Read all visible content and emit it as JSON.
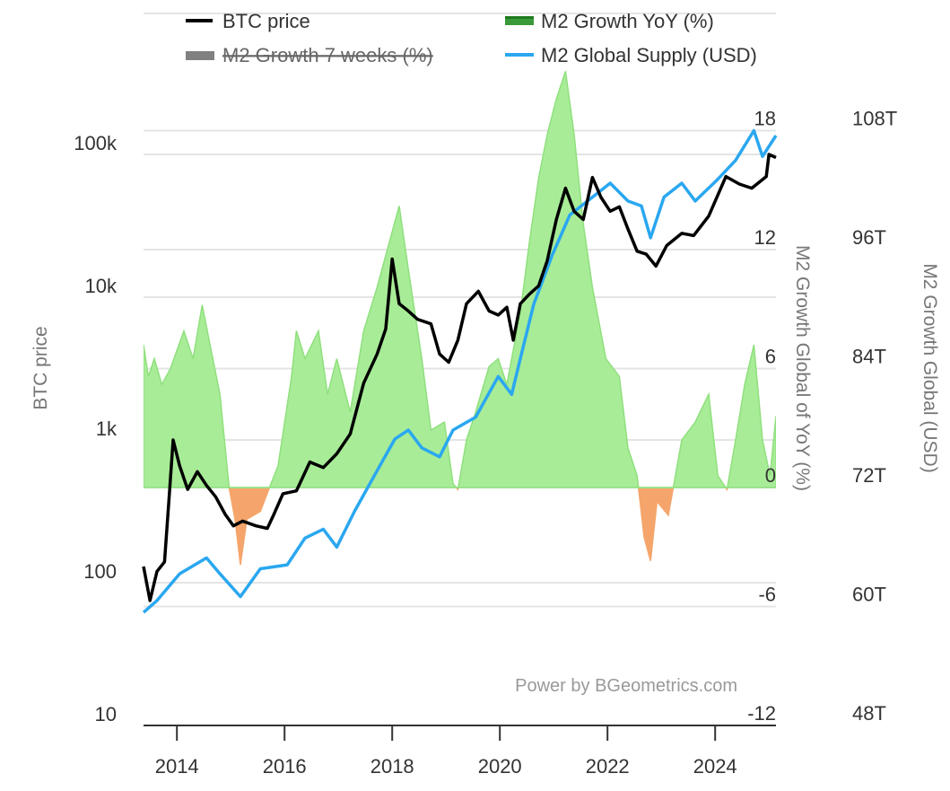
{
  "chart_data": {
    "type": "line",
    "title": "",
    "legend": {
      "placement": "top",
      "items": [
        {
          "label": "BTC price",
          "color": "#000000",
          "enabled": true
        },
        {
          "label": "M2 Growth YoY (%)",
          "color": "#3a9a3a",
          "enabled": true
        },
        {
          "label": "M2 Growth 7 weeks (%)",
          "color": "#808080",
          "enabled": false
        },
        {
          "label": "M2 Global Supply (USD)",
          "color": "#2aa7f0",
          "enabled": true
        }
      ]
    },
    "x_axis": {
      "ticks": [
        "2014",
        "2016",
        "2018",
        "2020",
        "2022",
        "2024"
      ],
      "tick_values": [
        2014,
        2016,
        2018,
        2020,
        2022,
        2024
      ],
      "range": [
        2013.38,
        2025.13
      ]
    },
    "y_left": {
      "label": "BTC price",
      "scale": "log",
      "range": [
        10,
        1000000
      ],
      "ticks": [
        "10",
        "100",
        "1k",
        "10k",
        "100k"
      ],
      "tick_values": [
        10,
        100,
        1000,
        10000,
        100000
      ]
    },
    "y_mid": {
      "label": "M2 Growth Global of YoY (%)",
      "range": [
        -12,
        24
      ],
      "ticks": [
        "-12",
        "-6",
        "0",
        "6",
        "12",
        "18"
      ],
      "tick_values": [
        -12,
        -6,
        0,
        6,
        12,
        18
      ]
    },
    "y_right": {
      "label": "M2 Growth Global (USD)",
      "range": [
        48,
        120
      ],
      "ticks": [
        "48T",
        "60T",
        "72T",
        "84T",
        "96T",
        "108T"
      ],
      "tick_values": [
        48,
        60,
        72,
        84,
        96,
        108
      ]
    },
    "grid": true,
    "colors": {
      "positive_fill": "#a8ec98",
      "positive_edge": "#8fe07d",
      "negative_fill": "#f5a56b",
      "btc": "#000000",
      "m2_supply": "#2aa7f0"
    },
    "series": [
      {
        "name": "BTC price",
        "axis": "left",
        "x": [
          2013.38,
          2013.5,
          2013.63,
          2013.77,
          2013.85,
          2013.93,
          2014.05,
          2014.2,
          2014.38,
          2014.55,
          2014.72,
          2014.9,
          2015.05,
          2015.22,
          2015.47,
          2015.68,
          2015.8,
          2015.97,
          2016.22,
          2016.47,
          2016.72,
          2016.97,
          2017.22,
          2017.47,
          2017.72,
          2017.88,
          2018.0,
          2018.13,
          2018.3,
          2018.47,
          2018.72,
          2018.88,
          2019.05,
          2019.22,
          2019.38,
          2019.6,
          2019.8,
          2019.97,
          2020.13,
          2020.25,
          2020.38,
          2020.55,
          2020.72,
          2020.88,
          2021.05,
          2021.22,
          2021.38,
          2021.55,
          2021.72,
          2021.88,
          2022.05,
          2022.22,
          2022.38,
          2022.55,
          2022.72,
          2022.9,
          2023.1,
          2023.38,
          2023.6,
          2023.88,
          2024.2,
          2024.45,
          2024.68,
          2024.95,
          2025.0,
          2025.13
        ],
        "y": [
          130,
          75,
          120,
          140,
          370,
          1000,
          660,
          450,
          600,
          480,
          400,
          300,
          250,
          270,
          250,
          240,
          300,
          420,
          440,
          700,
          640,
          800,
          1100,
          2500,
          4000,
          6000,
          18500,
          9000,
          8000,
          7000,
          6500,
          4000,
          3500,
          5000,
          9000,
          11000,
          8000,
          7500,
          8500,
          5000,
          9000,
          10500,
          12000,
          18000,
          35000,
          58000,
          40000,
          35000,
          69000,
          50000,
          40000,
          43000,
          30000,
          21000,
          20000,
          16500,
          23000,
          28000,
          27000,
          37000,
          70000,
          62000,
          58000,
          70000,
          100000,
          95000
        ]
      },
      {
        "name": "M2 Growth YoY (%)",
        "axis": "mid",
        "type": "area",
        "x": [
          2013.38,
          2013.47,
          2013.58,
          2013.72,
          2013.88,
          2014.13,
          2014.3,
          2014.47,
          2014.63,
          2014.8,
          2014.97,
          2015.08,
          2015.18,
          2015.3,
          2015.55,
          2015.72,
          2015.88,
          2016.13,
          2016.22,
          2016.38,
          2016.63,
          2016.8,
          2016.97,
          2017.22,
          2017.47,
          2017.72,
          2018.0,
          2018.13,
          2018.3,
          2018.55,
          2018.72,
          2018.97,
          2019.13,
          2019.22,
          2019.38,
          2019.55,
          2019.8,
          2019.97,
          2020.13,
          2020.22,
          2020.38,
          2020.55,
          2020.72,
          2020.88,
          2021.05,
          2021.22,
          2021.38,
          2021.55,
          2021.72,
          2021.97,
          2022.22,
          2022.38,
          2022.55,
          2022.68,
          2022.8,
          2022.92,
          2023.13,
          2023.38,
          2023.63,
          2023.88,
          2024.05,
          2024.22,
          2024.38,
          2024.55,
          2024.72,
          2024.88,
          2025.02,
          2025.13
        ],
        "y": [
          7.2,
          5.6,
          6.5,
          5.2,
          6.0,
          7.9,
          6.5,
          9.2,
          7.0,
          4.7,
          0,
          -1.6,
          -3.9,
          -1.6,
          -1.2,
          0,
          1.1,
          5.6,
          7.9,
          6.5,
          7.9,
          4.7,
          6.5,
          3.8,
          7.9,
          10.1,
          12.9,
          14.2,
          11.0,
          6.5,
          2.9,
          3.3,
          0.2,
          -0.1,
          2.4,
          3.8,
          6.1,
          6.5,
          5.2,
          6.5,
          8.8,
          12.4,
          15.6,
          17.8,
          19.6,
          21.0,
          17.8,
          13.3,
          10.1,
          6.5,
          5.6,
          2.0,
          0.6,
          -2.5,
          -3.7,
          -0.7,
          -1.4,
          2.4,
          3.3,
          4.7,
          0.6,
          -0.1,
          2.4,
          5.2,
          7.2,
          2.4,
          0.6,
          3.6
        ]
      },
      {
        "name": "M2 Global Supply (USD)",
        "axis": "right",
        "x": [
          2013.38,
          2013.63,
          2014.05,
          2014.55,
          2014.8,
          2015.18,
          2015.55,
          2016.05,
          2016.38,
          2016.72,
          2016.97,
          2017.3,
          2017.72,
          2018.05,
          2018.3,
          2018.55,
          2018.88,
          2019.13,
          2019.55,
          2019.97,
          2020.22,
          2020.38,
          2020.63,
          2020.97,
          2021.3,
          2021.63,
          2022.05,
          2022.38,
          2022.63,
          2022.8,
          2023.05,
          2023.38,
          2023.63,
          2024.05,
          2024.38,
          2024.72,
          2024.88,
          2025.13
        ],
        "y": [
          59.4,
          60.6,
          63.3,
          64.9,
          63.3,
          61.0,
          63.8,
          64.2,
          66.9,
          67.8,
          66.0,
          69.6,
          73.7,
          76.9,
          77.8,
          76.0,
          75.1,
          77.8,
          79.1,
          83.2,
          81.4,
          85.0,
          90.5,
          95.4,
          99.5,
          100.9,
          102.7,
          100.9,
          100.4,
          97.2,
          101.3,
          102.7,
          100.9,
          103.1,
          105.0,
          108.0,
          105.4,
          107.5
        ]
      }
    ]
  },
  "watermark": "Power by BGeometrics.com"
}
